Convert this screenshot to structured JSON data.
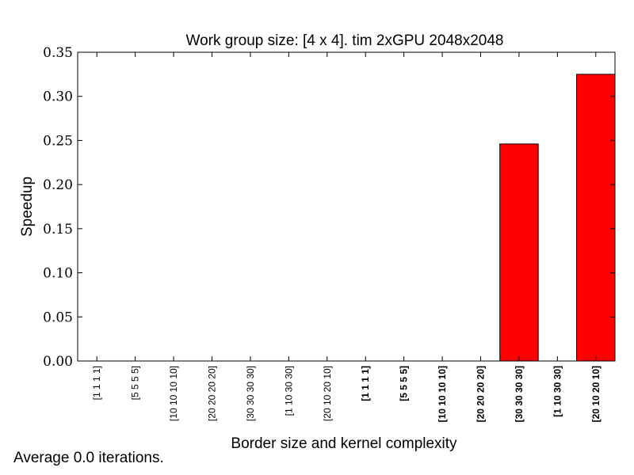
{
  "chart_data": {
    "type": "bar",
    "title": "Work group size: [4 x 4]. tim 2xGPU 2048x2048",
    "xlabel": "Border size and kernel complexity",
    "ylabel": "Speedup",
    "ylim": [
      0,
      0.35
    ],
    "yticks": [
      "0.00",
      "0.05",
      "0.10",
      "0.15",
      "0.20",
      "0.25",
      "0.30",
      "0.35"
    ],
    "ytick_values": [
      0,
      0.05,
      0.1,
      0.15,
      0.2,
      0.25,
      0.3,
      0.35
    ],
    "categories": [
      "[1 1 1 1]",
      "[5 5 5 5]",
      "[10 10 10 10]",
      "[20 20 20 20]",
      "[30 30 30 30]",
      "[1 10 30 30]",
      "[20 10 20 10]",
      "[1 1 1 1]",
      "[5 5 5 5]",
      "[10 10 10 10]",
      "[20 20 20 20]",
      "[30 30 30 30]",
      "[1 10 30 30]",
      "[20 10 20 10]"
    ],
    "category_bold": [
      false,
      false,
      false,
      false,
      false,
      false,
      false,
      true,
      true,
      true,
      true,
      true,
      true,
      true
    ],
    "values": [
      0,
      0,
      0,
      0,
      0,
      0,
      0,
      0,
      0,
      0,
      0,
      0.246,
      0,
      0.325
    ],
    "bar_color": "#ff0000",
    "grid": false,
    "legend": "none"
  },
  "footnote": "Average 0.0 iterations."
}
